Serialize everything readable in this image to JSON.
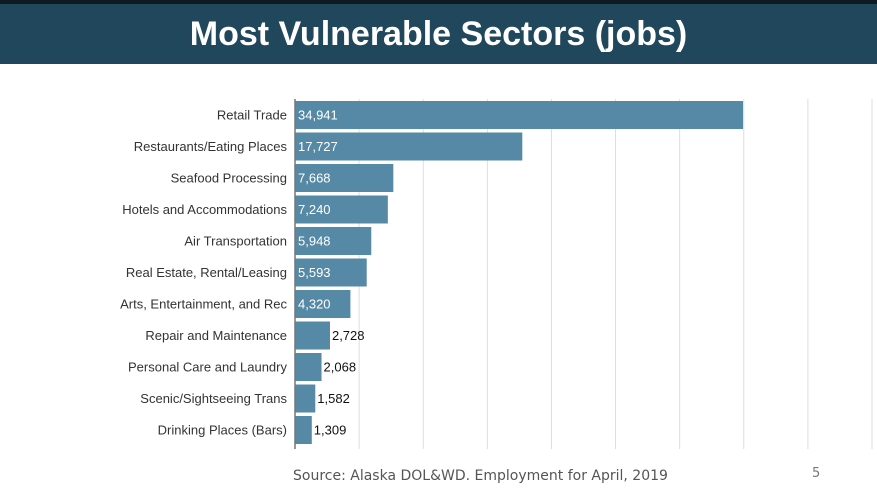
{
  "slide": {
    "title": "Most Vulnerable Sectors (jobs)",
    "source": "Source: Alaska DOL&WD. Employment for April, 2019",
    "page_number": "5"
  },
  "colors": {
    "title_bar": "#21475d",
    "bar": "#5589a5",
    "gridline": "#dddddd"
  },
  "chart_data": {
    "type": "bar",
    "orientation": "horizontal",
    "title": "Most Vulnerable Sectors (jobs)",
    "categories": [
      "Retail Trade",
      "Restaurants/Eating Places",
      "Seafood Processing",
      "Hotels and Accommodations",
      "Air Transportation",
      "Real Estate, Rental/Leasing",
      "Arts, Entertainment, and Rec",
      "Repair and Maintenance",
      "Personal Care and Laundry",
      "Scenic/Sightseeing Trans",
      "Drinking Places (Bars)"
    ],
    "values": [
      34941,
      17727,
      7668,
      7240,
      5948,
      5593,
      4320,
      2728,
      2068,
      1582,
      1309
    ],
    "value_labels": [
      "34,941",
      "17,727",
      "7,668",
      "7,240",
      "5,948",
      "5,593",
      "4,320",
      "2,728",
      "2,068",
      "1,582",
      "1,309"
    ],
    "xlim": [
      0,
      45000
    ],
    "grid_step": 5000,
    "grid": true,
    "legend": "none"
  }
}
